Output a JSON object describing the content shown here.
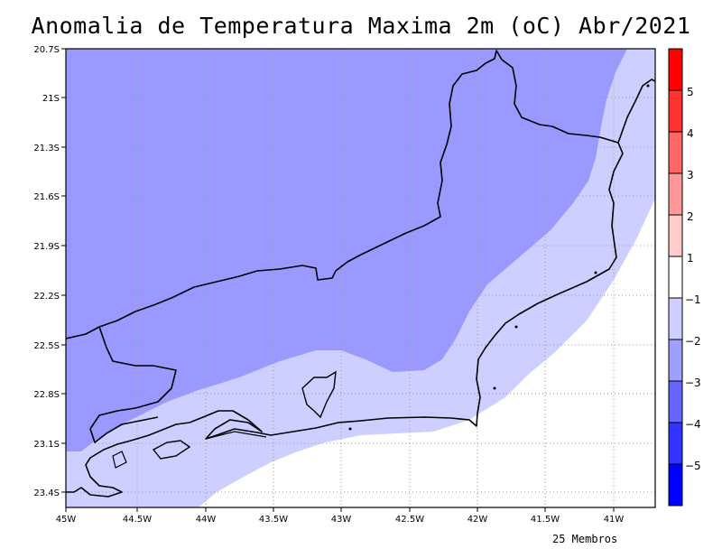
{
  "title": "Anomalia de Temperatura Maxima 2m (oC) Abr/2021",
  "footer": "25 Membros",
  "lat_ticks": [
    "20.7S",
    "21S",
    "21.3S",
    "21.6S",
    "21.9S",
    "22.2S",
    "22.5S",
    "22.8S",
    "23.1S",
    "23.4S"
  ],
  "lon_ticks": [
    "45W",
    "44.5W",
    "44W",
    "43.5W",
    "43W",
    "42.5W",
    "42W",
    "41.5W",
    "41W"
  ],
  "colorbar": {
    "labels": [
      "5",
      "4",
      "3",
      "2",
      "1",
      "−1",
      "−2",
      "−3",
      "−4",
      "−5"
    ],
    "colors": [
      "#ff0000",
      "#ff3333",
      "#ff6666",
      "#ff9999",
      "#ffcccc",
      "#ffffff",
      "#cfcfff",
      "#9f9fff",
      "#6666ff",
      "#3333ff",
      "#0000ff"
    ]
  },
  "shading_colors": {
    "anomaly_-3_to_-2": "#9999ff",
    "anomaly_-2_to_-1": "#cccfff",
    "anomaly_-1_to_1": "#ffffff"
  }
}
